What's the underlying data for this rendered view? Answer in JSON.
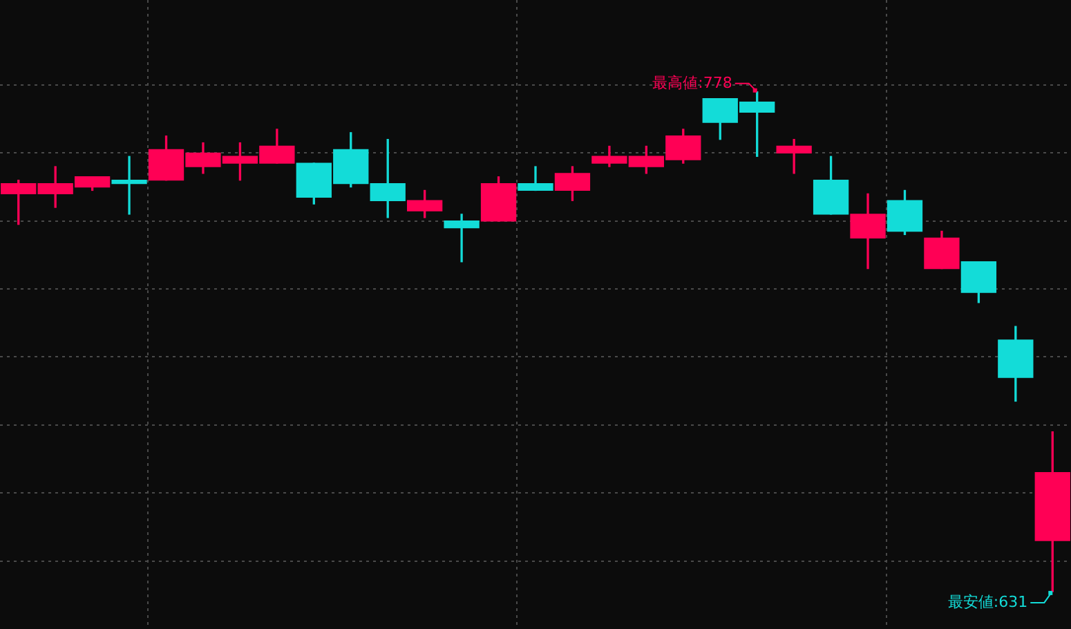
{
  "chart_data": {
    "type": "candlestick",
    "categories": [
      null,
      null,
      null,
      null,
      null,
      null,
      null,
      null,
      null,
      null,
      null,
      null,
      null,
      null,
      null,
      null,
      null,
      null,
      null,
      null,
      null,
      null,
      null,
      null,
      null,
      null,
      null,
      null,
      null
    ],
    "ohlc": [
      [
        748,
        752,
        739,
        751
      ],
      [
        748,
        756,
        744,
        751
      ],
      [
        750,
        753,
        749,
        753
      ],
      [
        752,
        759,
        742,
        751
      ],
      [
        752,
        765,
        752,
        761
      ],
      [
        756,
        763,
        754,
        760
      ],
      [
        757,
        763,
        752,
        759
      ],
      [
        757,
        767,
        757,
        762
      ],
      [
        757,
        757,
        745,
        747
      ],
      [
        761,
        766,
        750,
        751
      ],
      [
        751,
        764,
        741,
        746
      ],
      [
        743,
        749,
        741,
        746
      ],
      [
        740,
        742,
        728,
        738
      ],
      [
        740,
        753,
        740,
        751
      ],
      [
        751,
        756,
        749,
        749
      ],
      [
        749,
        756,
        746,
        754
      ],
      [
        757,
        762,
        756,
        759
      ],
      [
        756,
        762,
        754,
        759
      ],
      [
        758,
        767,
        757,
        765
      ],
      [
        776,
        776,
        764,
        769
      ],
      [
        775,
        778,
        759,
        772
      ],
      [
        760,
        764,
        754,
        762
      ],
      [
        752,
        759,
        742,
        742
      ],
      [
        735,
        748,
        726,
        742
      ],
      [
        746,
        749,
        736,
        737
      ],
      [
        726,
        737,
        726,
        735
      ],
      [
        728,
        728,
        716,
        719
      ],
      [
        705,
        709,
        687,
        694
      ],
      [
        646,
        678,
        631,
        666
      ]
    ],
    "colors": [
      "#ff0055",
      "#ff0055",
      "#ff0055",
      "#13dcd8",
      "#ff0055",
      "#ff0055",
      "#ff0055",
      "#ff0055",
      "#13dcd8",
      "#13dcd8",
      "#13dcd8",
      "#ff0055",
      "#13dcd8",
      "#ff0055",
      "#13dcd8",
      "#ff0055",
      "#ff0055",
      "#ff0055",
      "#ff0055",
      "#13dcd8",
      "#13dcd8",
      "#ff0055",
      "#13dcd8",
      "#ff0055",
      "#13dcd8",
      "#ff0055",
      "#13dcd8",
      "#13dcd8",
      "#ff0055"
    ],
    "ylim": [
      620,
      805
    ],
    "yticks": [
      {
        "value": 640,
        "label": null
      },
      {
        "value": 660,
        "label": null
      },
      {
        "value": 680,
        "label": null
      },
      {
        "value": 700,
        "label": null
      },
      {
        "value": 720,
        "label": null
      },
      {
        "value": 740,
        "label": null
      },
      {
        "value": 760,
        "label": null
      },
      {
        "value": 780,
        "label": null
      }
    ],
    "grid": true,
    "legend": false,
    "annotations": [
      "最高値:778",
      "最安値:631"
    ]
  }
}
